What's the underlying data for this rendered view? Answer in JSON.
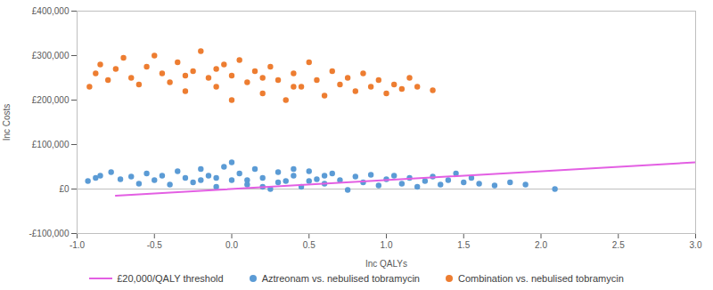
{
  "chart_data": {
    "type": "scatter",
    "x_label": "Inc QALYs",
    "y_label": "Inc Costs",
    "xlim": [
      -1,
      3
    ],
    "xticks": [
      {
        "value": -1,
        "label": "-1.0"
      },
      {
        "value": -0.5,
        "label": "-0.5"
      },
      {
        "value": 0,
        "label": "0.0"
      },
      {
        "value": 0.5,
        "label": "0.5"
      },
      {
        "value": 1,
        "label": "1.0"
      },
      {
        "value": 1.5,
        "label": "1.5"
      },
      {
        "value": 2,
        "label": "2.0"
      },
      {
        "value": 2.5,
        "label": "2.5"
      },
      {
        "value": 3,
        "label": "3.0"
      }
    ],
    "ylim": [
      -100000,
      400000
    ],
    "yticks": [
      {
        "value": -100000,
        "label": "-£100,000"
      },
      {
        "value": 0,
        "label": "£0"
      },
      {
        "value": 100000,
        "label": "£100,000"
      },
      {
        "value": 200000,
        "label": "£200,000"
      },
      {
        "value": 300000,
        "label": "£300,000"
      },
      {
        "value": 400000,
        "label": "£400,000"
      }
    ],
    "grid": false,
    "legend": "bottom",
    "series": [
      {
        "name": "£20,000/QALY threshold",
        "type": "line",
        "line_style": "solid",
        "color": "#e35fe3",
        "x": [
          -0.75,
          3
        ],
        "values": [
          -15000,
          60000
        ]
      },
      {
        "name": "Aztreonam vs. nebulised tobramycin",
        "type": "scatter",
        "marker": "circle",
        "color": "#5b9bd5",
        "x": [
          -0.93,
          -0.88,
          -0.85,
          -0.78,
          -0.72,
          -0.65,
          -0.6,
          -0.55,
          -0.5,
          -0.45,
          -0.4,
          -0.35,
          -0.3,
          -0.25,
          -0.2,
          -0.15,
          -0.1,
          -0.05,
          0,
          0,
          0.05,
          0.1,
          0.15,
          0.2,
          0.25,
          0.3,
          0.35,
          0.4,
          0.45,
          0.5,
          0.55,
          0.6,
          0.65,
          0.7,
          0.75,
          0.8,
          0.85,
          0.9,
          0.95,
          1,
          1.05,
          1.1,
          1.15,
          1.2,
          1.25,
          1.3,
          1.35,
          1.4,
          1.45,
          1.5,
          1.55,
          1.6,
          1.7,
          1.8,
          1.9,
          2.09,
          -0.1,
          0.1,
          0.3,
          0.5,
          0.6,
          0.4,
          0.2,
          -0.2
        ],
        "values": [
          18000,
          25000,
          30000,
          38000,
          22000,
          28000,
          12000,
          35000,
          20000,
          30000,
          10000,
          40000,
          25000,
          15000,
          45000,
          30000,
          5000,
          50000,
          20000,
          60000,
          35000,
          10000,
          45000,
          25000,
          0,
          38000,
          18000,
          30000,
          5000,
          40000,
          22000,
          12000,
          35000,
          20000,
          -2000,
          28000,
          15000,
          32000,
          8000,
          22000,
          30000,
          12000,
          25000,
          5000,
          18000,
          28000,
          10000,
          20000,
          35000,
          15000,
          25000,
          12000,
          8000,
          15000,
          10000,
          0,
          25000,
          20000,
          15000,
          18000,
          30000,
          45000,
          5000,
          20000
        ]
      },
      {
        "name": "Combination vs. nebulised tobramycin",
        "type": "scatter",
        "marker": "circle",
        "color": "#ed7d31",
        "x": [
          -0.92,
          -0.88,
          -0.85,
          -0.8,
          -0.75,
          -0.7,
          -0.65,
          -0.6,
          -0.55,
          -0.5,
          -0.45,
          -0.4,
          -0.35,
          -0.3,
          -0.25,
          -0.2,
          -0.15,
          -0.1,
          -0.05,
          0,
          0,
          0.05,
          0.1,
          0.15,
          0.2,
          0.25,
          0.3,
          0.35,
          0.4,
          0.45,
          0.5,
          0.55,
          0.6,
          0.65,
          0.7,
          0.75,
          0.8,
          0.85,
          0.9,
          0.95,
          1,
          1.05,
          1.1,
          1.15,
          1.2,
          1.3,
          -0.1,
          0.2,
          0.4,
          -0.3
        ],
        "values": [
          230000,
          260000,
          280000,
          245000,
          270000,
          295000,
          250000,
          235000,
          275000,
          300000,
          260000,
          240000,
          285000,
          220000,
          265000,
          310000,
          250000,
          230000,
          280000,
          255000,
          200000,
          290000,
          240000,
          265000,
          215000,
          275000,
          245000,
          200000,
          260000,
          230000,
          285000,
          245000,
          210000,
          265000,
          235000,
          250000,
          220000,
          260000,
          230000,
          245000,
          215000,
          235000,
          225000,
          250000,
          230000,
          222000,
          270000,
          250000,
          230000,
          255000
        ]
      }
    ]
  }
}
